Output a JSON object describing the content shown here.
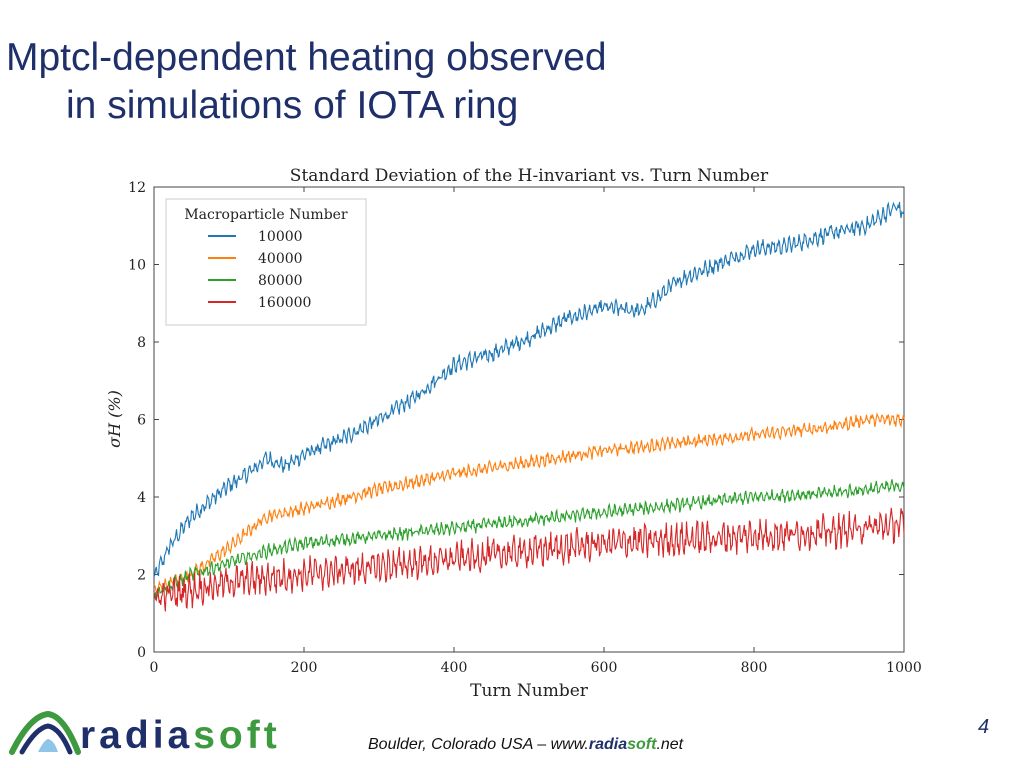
{
  "slide": {
    "title_line1": "Mptcl-dependent heating observed",
    "title_line2": "in simulations of IOTA ring",
    "page_number": "4"
  },
  "footer": {
    "logo_text_part1": "radia",
    "logo_text_part2": "soft",
    "location_text": "Boulder, Colorado  USA  –  www.",
    "url_brand": "radia",
    "url_brand_accent": "soft",
    "url_tail": ".net"
  },
  "colors": {
    "title": "#1f2f6a",
    "logo_blue": "#1f2f6a",
    "logo_green": "#3e9a3e"
  },
  "chart_data": {
    "type": "line",
    "title": "Standard Deviation of the H-invariant vs. Turn Number",
    "xlabel": "Turn Number",
    "ylabel": "σH (%)",
    "xlim": [
      0,
      1000
    ],
    "ylim": [
      0,
      12
    ],
    "xticks": [
      0,
      200,
      400,
      600,
      800,
      1000
    ],
    "yticks": [
      0,
      2,
      4,
      6,
      8,
      10,
      12
    ],
    "grid": false,
    "legend": {
      "title": "Macroparticle Number",
      "position": "top-left"
    },
    "series": [
      {
        "name": "10000",
        "color": "#1f77b4",
        "x": [
          0,
          20,
          50,
          75,
          100,
          125,
          150,
          175,
          200,
          250,
          300,
          350,
          400,
          450,
          500,
          550,
          600,
          650,
          700,
          750,
          800,
          850,
          900,
          950,
          990,
          1000
        ],
        "values": [
          1.9,
          2.7,
          3.5,
          3.9,
          4.3,
          4.6,
          5.0,
          4.8,
          5.1,
          5.5,
          6.0,
          6.6,
          7.4,
          7.7,
          8.1,
          8.6,
          8.9,
          8.8,
          9.6,
          10.0,
          10.4,
          10.5,
          10.8,
          11.0,
          11.5,
          11.3
        ],
        "noise": 0.25
      },
      {
        "name": "40000",
        "color": "#ff7f0e",
        "x": [
          0,
          50,
          100,
          125,
          150,
          200,
          300,
          400,
          500,
          600,
          700,
          800,
          900,
          950,
          1000
        ],
        "values": [
          1.6,
          2.0,
          2.7,
          3.1,
          3.5,
          3.7,
          4.2,
          4.6,
          4.9,
          5.2,
          5.4,
          5.6,
          5.8,
          6.0,
          6.0
        ],
        "noise": 0.2
      },
      {
        "name": "80000",
        "color": "#2ca02c",
        "x": [
          0,
          50,
          100,
          150,
          200,
          300,
          400,
          500,
          600,
          700,
          800,
          900,
          1000
        ],
        "values": [
          1.5,
          2.0,
          2.3,
          2.6,
          2.8,
          3.0,
          3.2,
          3.4,
          3.6,
          3.8,
          4.0,
          4.1,
          4.3
        ],
        "noise": 0.2
      },
      {
        "name": "160000",
        "color": "#d62728",
        "x": [
          0,
          50,
          100,
          200,
          300,
          400,
          500,
          600,
          700,
          800,
          900,
          1000
        ],
        "values": [
          1.4,
          1.6,
          1.8,
          2.0,
          2.2,
          2.4,
          2.6,
          2.8,
          2.9,
          3.0,
          3.1,
          3.3
        ],
        "noise": 0.5
      }
    ]
  }
}
